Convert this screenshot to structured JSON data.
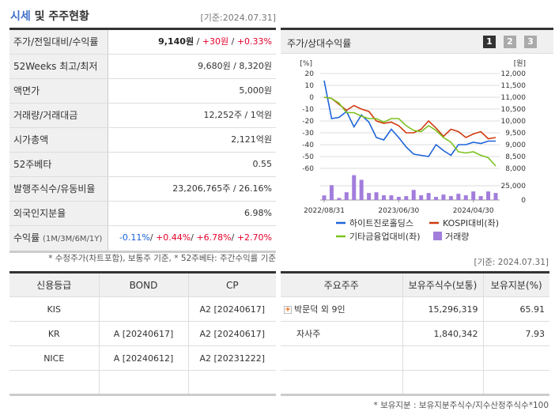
{
  "title_highlight": "시세",
  "title_rest": " 및 주주현황",
  "basis": "[기준:2024.07.31]",
  "summary": [
    {
      "label": "주가/전일대비/수익률",
      "parts": [
        [
          "9,140원",
          "b"
        ],
        [
          " / ",
          ""
        ],
        [
          "+30원",
          "red"
        ],
        [
          " / ",
          ""
        ],
        [
          "+0.33%",
          "red"
        ]
      ]
    },
    {
      "label": "52Weeks 최고/최저",
      "parts": [
        [
          "9,680원 / 8,320원",
          ""
        ]
      ]
    },
    {
      "label": "액면가",
      "parts": [
        [
          "5,000원",
          ""
        ]
      ]
    },
    {
      "label": "거래량/거래대금",
      "parts": [
        [
          "12,252주 / 1억원",
          ""
        ]
      ]
    },
    {
      "label": "시가총액",
      "parts": [
        [
          "2,121억원",
          ""
        ]
      ]
    },
    {
      "label": "52주베타",
      "parts": [
        [
          "0.55",
          ""
        ]
      ]
    },
    {
      "label": "발행주식수/유동비율",
      "parts": [
        [
          "23,206,765주 / 26.16%",
          ""
        ]
      ]
    },
    {
      "label": "외국인지분율",
      "parts": [
        [
          "6.98%",
          ""
        ]
      ]
    },
    {
      "label": "수익률",
      "label_small": "(1M/3M/6M/1Y)",
      "parts": [
        [
          "-0.11%",
          "blue"
        ],
        [
          "/ ",
          ""
        ],
        [
          "+0.44%",
          "red"
        ],
        [
          "/ ",
          ""
        ],
        [
          "+6.78%",
          "red"
        ],
        [
          "/ ",
          ""
        ],
        [
          "+2.70%",
          "red"
        ]
      ]
    }
  ],
  "summary_note": "* 수정주가(차트포함), 보통주 기준, * 52주베타: 주간수익률 기준",
  "chart_panel": {
    "title": "주가/상대수익률",
    "pages": [
      "1",
      "2",
      "3"
    ],
    "active_page": "1"
  },
  "chart_data": {
    "type": "line",
    "left_unit": "[%]",
    "right_unit": "[원]",
    "left_ticks": [
      20,
      10,
      0,
      -10,
      -20,
      -30,
      -40,
      -50,
      -60
    ],
    "right_ticks": [
      "12,000",
      "11,500",
      "11,000",
      "10,500",
      "10,000",
      "9,500",
      "9,000",
      "8,500",
      "8,000"
    ],
    "left_ylim": [
      -60,
      20
    ],
    "right_ylim": [
      8000,
      12000
    ],
    "volume_ticks": [
      "25,000",
      "0"
    ],
    "volume_ylim": [
      0,
      50000
    ],
    "x_labels": [
      {
        "index": 0,
        "label": "2022/08/31"
      },
      {
        "index": 10,
        "label": "2023/06/30"
      },
      {
        "index": 20,
        "label": "2024/04/30"
      }
    ],
    "series": [
      {
        "name": "하이트진로홀딩스",
        "color": "#1e64d8",
        "values": [
          14,
          -18,
          -17,
          -12,
          -25,
          -15,
          -21,
          -34,
          -36,
          -27,
          -34,
          -42,
          -48,
          -49,
          -50,
          -40,
          -45,
          -49,
          -40,
          -40,
          -38,
          -39,
          -37,
          -37
        ]
      },
      {
        "name": "KOSPI대비(좌)",
        "color": "#d03a10",
        "values": [
          0,
          -1,
          -6,
          -11,
          -7,
          -10,
          -12,
          -20,
          -22,
          -21,
          -24,
          -30,
          -30,
          -27,
          -20,
          -26,
          -33,
          -27,
          -29,
          -34,
          -31,
          -29,
          -35,
          -34
        ]
      },
      {
        "name": "기타금융업대비(좌)",
        "color": "#7cc21e",
        "values": [
          0,
          -1,
          -5,
          -13,
          -13,
          -16,
          -18,
          -18,
          -21,
          -18,
          -18,
          -24,
          -28,
          -29,
          -24,
          -28,
          -34,
          -38,
          -46,
          -47,
          -46,
          -49,
          -51,
          -58
        ]
      }
    ],
    "volume": {
      "name": "거래량",
      "color": "#a27ddc",
      "values": [
        8000,
        26000,
        3600,
        13600,
        43600,
        35400,
        12300,
        13600,
        8200,
        8200,
        5500,
        6800,
        17700,
        8200,
        12300,
        5500,
        9500,
        6800,
        10900,
        8200,
        15000,
        6800,
        15000,
        12300
      ]
    }
  },
  "credit": {
    "headers": [
      "신용등급",
      "BOND",
      "CP"
    ],
    "rows": [
      [
        "KIS",
        "",
        "A2 [20240617]"
      ],
      [
        "KR",
        "A [20240617]",
        "A2 [20240617]"
      ],
      [
        "NICE",
        "A [20240612]",
        "A2 [20231222]"
      ],
      [
        "",
        "",
        ""
      ]
    ]
  },
  "holders_basis": "[기준: 2024.07.31]",
  "holders": {
    "headers": [
      "주요주주",
      "보유주식수(보통)",
      "보유지분(%)"
    ],
    "rows": [
      [
        "박문덕 외 9인",
        "15,296,319",
        "65.91"
      ],
      [
        "자사주",
        "1,840,342",
        "7.93"
      ],
      [
        "",
        "",
        ""
      ],
      [
        "",
        "",
        ""
      ]
    ]
  },
  "holders_note": "* 보유지분 : 보유지분주식수/지수산정주식수*100"
}
